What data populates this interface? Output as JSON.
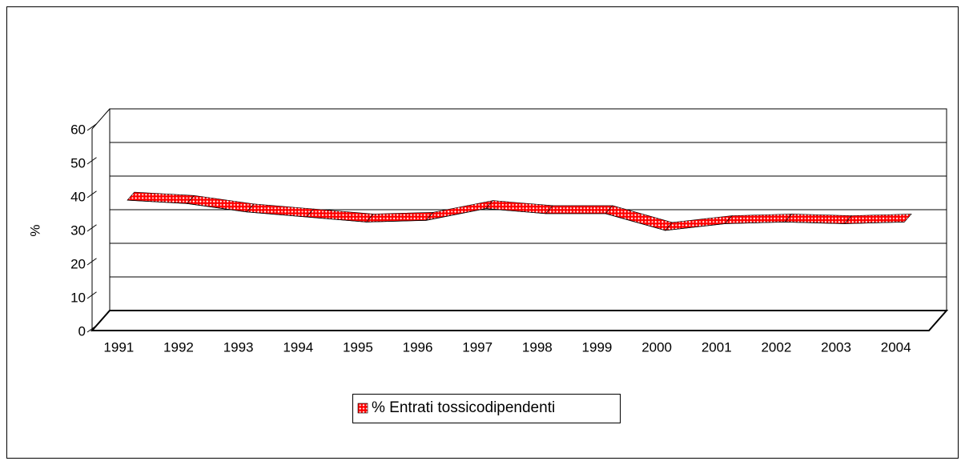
{
  "chart_data": {
    "type": "line3d",
    "y_label": "%",
    "categories": [
      "1991",
      "1992",
      "1993",
      "1994",
      "1995",
      "1996",
      "1997",
      "1998",
      "1999",
      "2000",
      "2001",
      "2002",
      "2003",
      "2004"
    ],
    "series": [
      {
        "name": "% Entrati tossicodipendenti",
        "color": "#ff0000",
        "values": [
          37,
          36,
          33.5,
          32,
          30.5,
          31,
          34.5,
          33,
          33,
          28,
          30,
          30.5,
          30,
          30.5
        ]
      }
    ],
    "ylim": [
      0,
      60
    ],
    "yticks": [
      0,
      10,
      20,
      30,
      40,
      50,
      60
    ],
    "grid": true,
    "legend": "bottom"
  }
}
